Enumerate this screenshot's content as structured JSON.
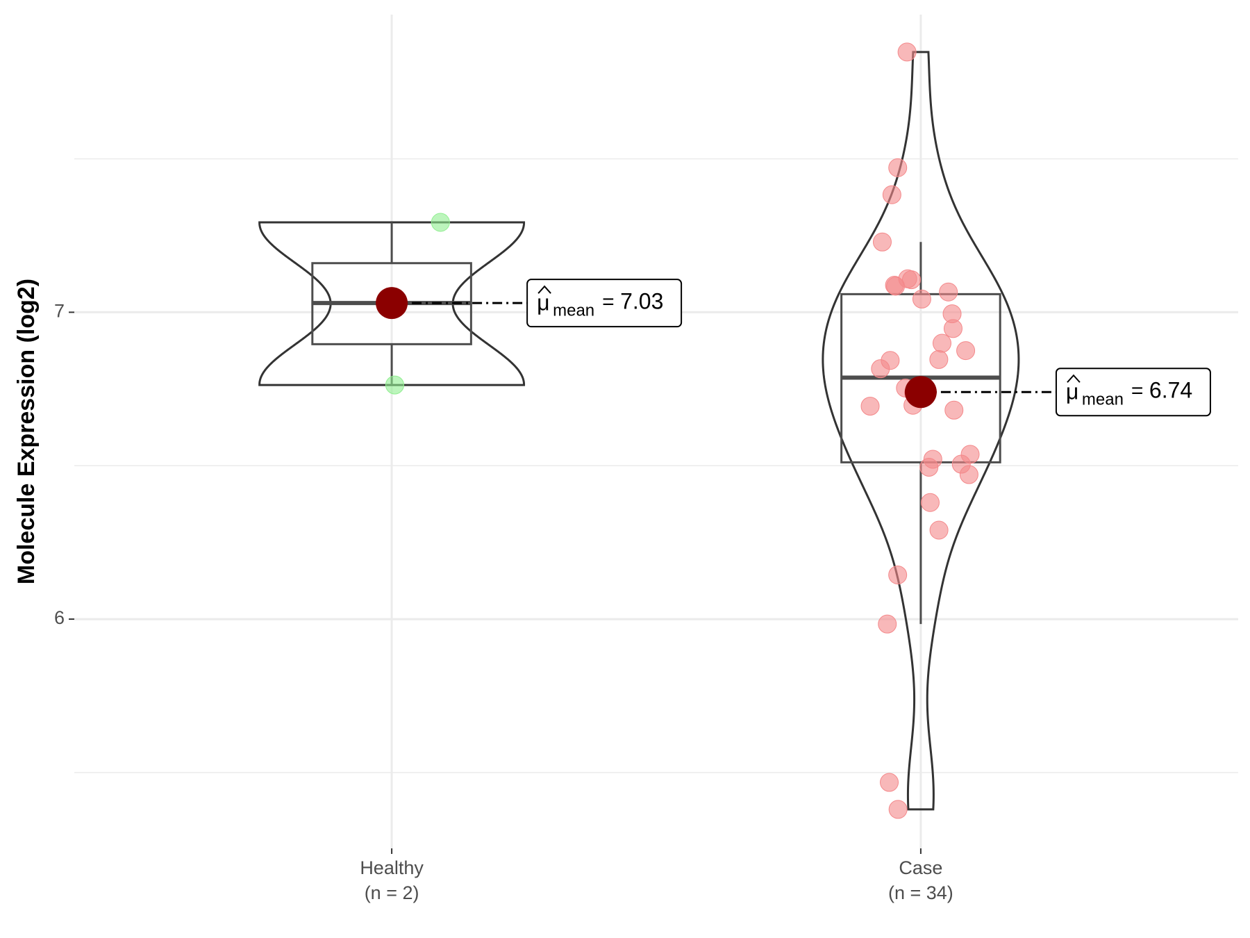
{
  "chart_data": {
    "type": "violin",
    "y_label": "Molecule Expression (log2)",
    "ylim": [
      5.253,
      7.97
    ],
    "yticks": [
      6,
      7
    ],
    "y_minor_grid": [
      5.5,
      6.5,
      7.5
    ],
    "grid": true,
    "mean_label": {
      "symbol": "μ",
      "subscript": "mean",
      "relation": "="
    },
    "mean_color": "#8b0000",
    "groups": [
      {
        "name": "Healthy",
        "n_label": "(n = 2)",
        "color": "#90ee90",
        "values": [
          7.293,
          6.763
        ],
        "box": {
          "q1": 6.896,
          "median": 7.03,
          "q3": 7.16,
          "whisker_low": 6.763,
          "whisker_high": 7.293
        },
        "mean": 7.03
      },
      {
        "name": "Case",
        "n_label": "(n = 34)",
        "color": "#f4888a",
        "values": [
          7.848,
          7.471,
          7.383,
          7.229,
          7.106,
          7.109,
          7.088,
          7.085,
          7.066,
          7.043,
          6.995,
          6.947,
          6.899,
          6.875,
          6.846,
          6.843,
          6.816,
          6.761,
          6.753,
          6.737,
          6.697,
          6.694,
          6.681,
          6.537,
          6.521,
          6.505,
          6.495,
          6.471,
          6.38,
          6.29,
          6.144,
          5.984,
          5.468,
          5.38
        ],
        "box": {
          "q1": 6.511,
          "median": 6.787,
          "q3": 7.059,
          "whisker_low": 5.984,
          "whisker_high": 7.229
        },
        "mean": 6.74
      }
    ]
  }
}
